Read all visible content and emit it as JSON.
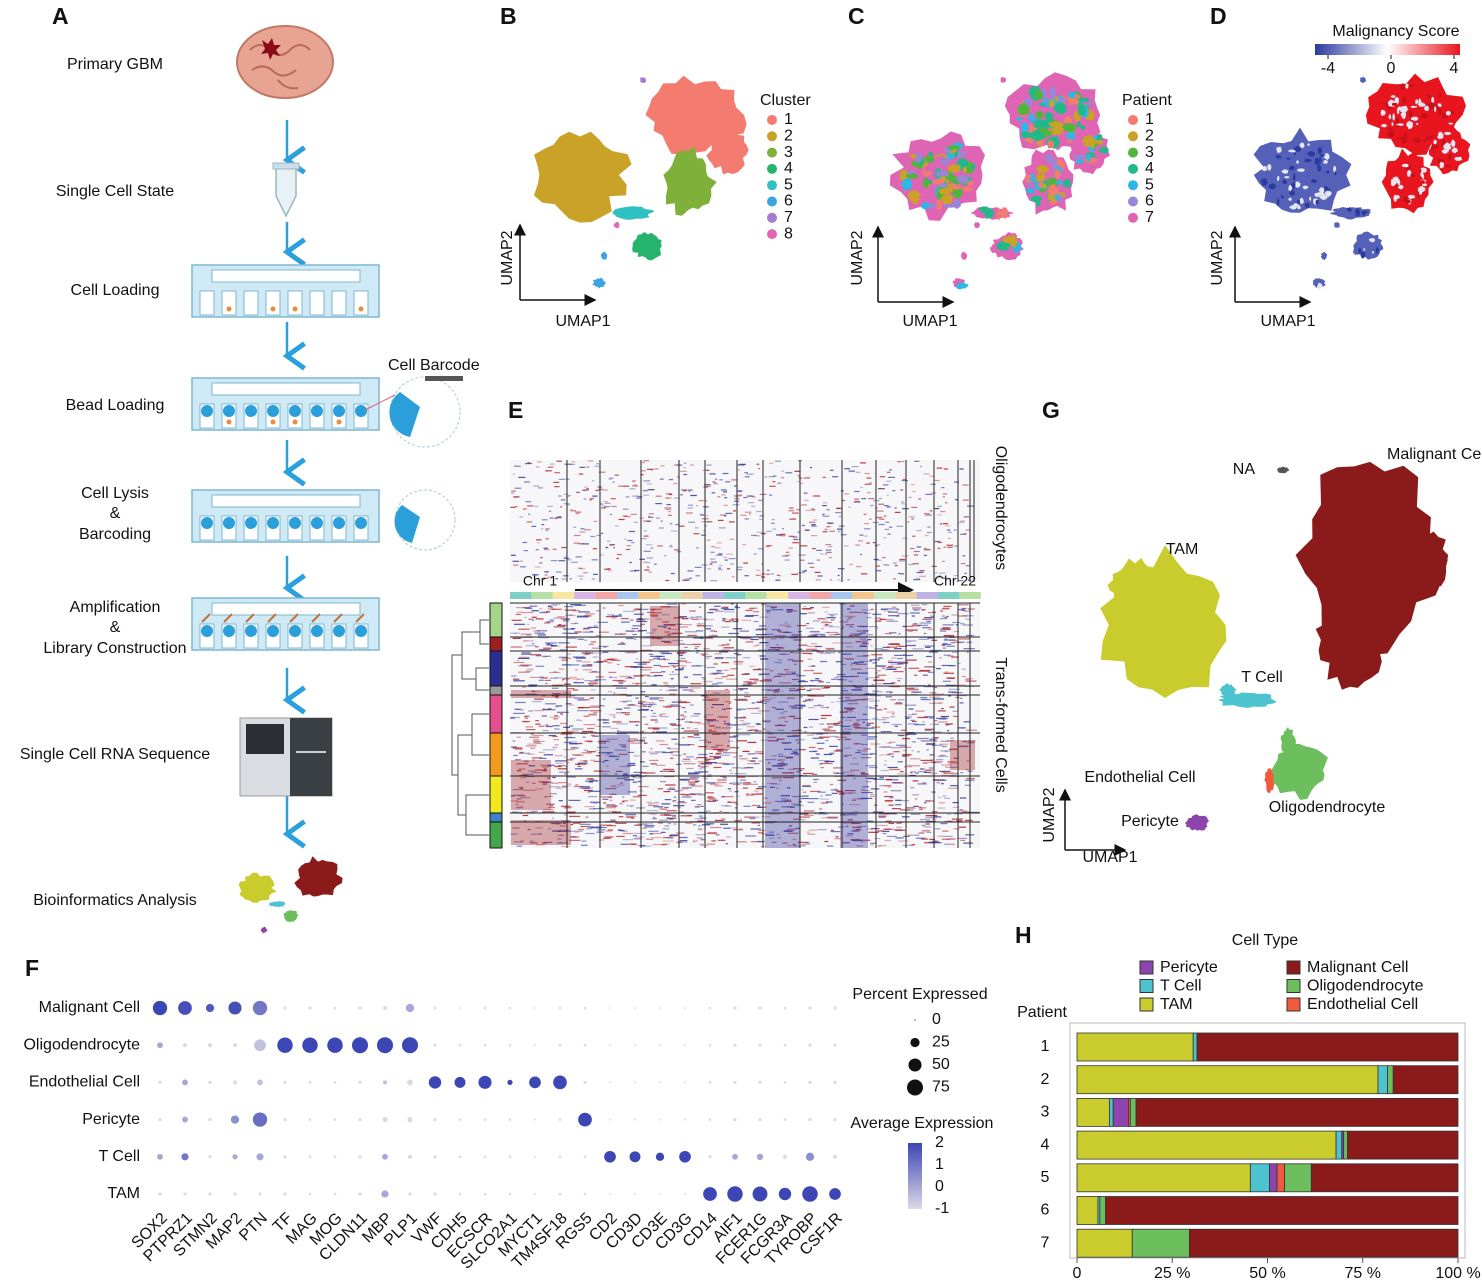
{
  "panel_a": {
    "letter": "A",
    "steps": [
      [
        "Primary GBM"
      ],
      [
        "Single Cell State"
      ],
      [
        "Cell Loading"
      ],
      [
        "Bead Loading"
      ],
      [
        "Cell Lysis",
        "&",
        "Barcoding"
      ],
      [
        "Amplification",
        "&",
        "Library Construction"
      ],
      [
        "Single Cell RNA Sequence"
      ],
      [
        "Bioinformatics Analysis"
      ]
    ],
    "cell_barcode": "Cell Barcode"
  },
  "panel_b": {
    "letter": "B",
    "legend_title": "Cluster",
    "x_label": "UMAP1",
    "y_label": "UMAP2",
    "clusters": [
      {
        "name": "1",
        "color": "#f37b6f"
      },
      {
        "name": "2",
        "color": "#c9a227"
      },
      {
        "name": "3",
        "color": "#7fb03a"
      },
      {
        "name": "4",
        "color": "#25b36d"
      },
      {
        "name": "5",
        "color": "#2fc0c4"
      },
      {
        "name": "6",
        "color": "#3aa3e0"
      },
      {
        "name": "7",
        "color": "#a57bd3"
      },
      {
        "name": "8",
        "color": "#e166b4"
      }
    ]
  },
  "panel_c": {
    "letter": "C",
    "legend_title": "Patient",
    "x_label": "UMAP1",
    "y_label": "UMAP2",
    "patients": [
      {
        "name": "1",
        "color": "#f37b6f"
      },
      {
        "name": "2",
        "color": "#c9a227"
      },
      {
        "name": "3",
        "color": "#4fb53d"
      },
      {
        "name": "4",
        "color": "#22b98a"
      },
      {
        "name": "5",
        "color": "#2fb6e6"
      },
      {
        "name": "6",
        "color": "#9a86d6"
      },
      {
        "name": "7",
        "color": "#e064b4"
      }
    ]
  },
  "panel_d": {
    "letter": "D",
    "colorbar_title": "Malignancy Score",
    "x_label": "UMAP1",
    "y_label": "UMAP2",
    "colorbar_ticks": [
      -4,
      0,
      4
    ],
    "colorbar_colors": [
      "#2b3a9e",
      "#ffffff",
      "#e8141e"
    ]
  },
  "panel_e": {
    "letter": "E",
    "top_label": "Oligodendrocytes",
    "bottom_label": "Trans-formed Cells",
    "chr_start": "Chr 1",
    "chr_end": "Chr 22"
  },
  "panel_g": {
    "letter": "G",
    "x_label": "UMAP1",
    "y_label": "UMAP2",
    "cell_types": [
      {
        "name": "NA",
        "color": "#555555"
      },
      {
        "name": "Malignant Cell",
        "color": "#8b1a1a"
      },
      {
        "name": "TAM",
        "color": "#c9cc2c"
      },
      {
        "name": "T Cell",
        "color": "#4ec3d0"
      },
      {
        "name": "Endothelial Cell",
        "color": "#f05a3c"
      },
      {
        "name": "Pericyte",
        "color": "#8e44ad"
      },
      {
        "name": "Oligodendrocyte",
        "color": "#6cbf5c"
      }
    ]
  },
  "chart_data": [
    {
      "type": "dot",
      "letter": "F",
      "categories": [
        "Malignant Cell",
        "Oligodendrocyte",
        "Endothelial Cell",
        "Pericyte",
        "T Cell",
        "TAM"
      ],
      "genes": [
        "SOX2",
        "PTPRZ1",
        "STMN2",
        "MAP2",
        "PTN",
        "TF",
        "MAG",
        "MOG",
        "CLDN11",
        "MBP",
        "PLP1",
        "VWF",
        "CDH5",
        "ECSCR",
        "SLCO2A1",
        "MYCT1",
        "TM4SF18",
        "RGS5",
        "CD2",
        "CD3D",
        "CD3E",
        "CD3G",
        "CD14",
        "AIF1",
        "FCER1G",
        "FCGR3A",
        "TYROBP",
        "CSF1R"
      ],
      "percent": [
        [
          60,
          55,
          20,
          50,
          60,
          3,
          3,
          2,
          3,
          5,
          20,
          2,
          1,
          2,
          2,
          1,
          2,
          2,
          1,
          1,
          1,
          1,
          2,
          3,
          3,
          2,
          3,
          3
        ],
        [
          10,
          5,
          5,
          5,
          40,
          70,
          70,
          70,
          75,
          75,
          75,
          3,
          2,
          2,
          2,
          1,
          2,
          2,
          1,
          1,
          1,
          1,
          2,
          3,
          3,
          2,
          3,
          3
        ],
        [
          3,
          10,
          3,
          5,
          10,
          3,
          2,
          2,
          3,
          5,
          10,
          45,
          35,
          50,
          8,
          40,
          55,
          3,
          1,
          1,
          1,
          1,
          2,
          3,
          3,
          2,
          3,
          3
        ],
        [
          3,
          10,
          3,
          20,
          60,
          3,
          2,
          2,
          3,
          8,
          8,
          3,
          2,
          2,
          2,
          1,
          2,
          55,
          1,
          1,
          1,
          1,
          2,
          3,
          3,
          2,
          3,
          3
        ],
        [
          10,
          15,
          3,
          8,
          15,
          3,
          2,
          2,
          3,
          10,
          5,
          3,
          2,
          2,
          2,
          1,
          2,
          2,
          40,
          35,
          20,
          40,
          3,
          10,
          12,
          5,
          20,
          5
        ],
        [
          3,
          3,
          3,
          3,
          3,
          3,
          2,
          2,
          3,
          15,
          3,
          3,
          2,
          2,
          2,
          1,
          2,
          2,
          1,
          1,
          1,
          1,
          55,
          70,
          65,
          45,
          70,
          40
        ]
      ],
      "expression": [
        [
          2,
          1.8,
          1.6,
          1.8,
          1,
          -1,
          -1,
          -1,
          -1,
          -1,
          0,
          -1,
          -1,
          -1,
          -1,
          -1,
          -1,
          -1,
          -1,
          -1,
          -1,
          -1,
          -1,
          -1,
          -1,
          -1,
          -1,
          -1
        ],
        [
          0,
          -1,
          -1,
          -1,
          -0.5,
          2,
          2,
          2,
          2,
          2,
          2,
          -1,
          -1,
          -1,
          -1,
          -1,
          -1,
          -1,
          -1,
          -1,
          -1,
          -1,
          -1,
          -1,
          -1,
          -1,
          -1,
          -1
        ],
        [
          -1,
          0,
          -1,
          -1,
          -0.5,
          -1,
          -1,
          -1,
          -1,
          -0.5,
          -1,
          2,
          2,
          2,
          2,
          2,
          2,
          -1,
          -1,
          -1,
          -1,
          -1,
          -1,
          -1,
          -1,
          -1,
          -1,
          -1
        ],
        [
          -1,
          0,
          -1,
          0.5,
          1.2,
          -1,
          -1,
          -1,
          -1,
          -1,
          -1,
          -1,
          -1,
          -1,
          -1,
          -1,
          -1,
          2,
          -1,
          -1,
          -1,
          -1,
          -1,
          -1,
          -1,
          -1,
          -1,
          -1
        ],
        [
          0,
          1,
          -1,
          0,
          0,
          -1,
          -1,
          -1,
          -1,
          0,
          -1,
          -1,
          -1,
          -1,
          -1,
          -1,
          -1,
          -1,
          2,
          2,
          2,
          2,
          -1,
          0,
          0,
          -1,
          0.5,
          -1
        ],
        [
          -1,
          -1,
          -1,
          -1,
          -1,
          -1,
          -1,
          -1,
          -1,
          0,
          -1,
          -1,
          -1,
          -1,
          -1,
          -1,
          -1,
          -1,
          -1,
          -1,
          -1,
          -1,
          2,
          2,
          2,
          2,
          2,
          2
        ]
      ],
      "size_title": "Percent Expressed",
      "size_ticks": [
        0,
        25,
        50,
        75
      ],
      "color_title": "Average Expression",
      "color_ticks": [
        2,
        1,
        0,
        -1
      ],
      "colors": [
        "#dcd8e8",
        "#3c46b4"
      ]
    },
    {
      "type": "bar",
      "letter": "H",
      "orientation": "horizontal",
      "stacked": true,
      "title": "Cell Type",
      "y_label": "Patient",
      "categories": [
        "1",
        "2",
        "3",
        "4",
        "5",
        "6",
        "7"
      ],
      "series": [
        {
          "name": "TAM",
          "color": "#c9cc2c",
          "values": [
            30.5,
            79,
            8.5,
            68,
            45.5,
            5.5,
            14.5
          ]
        },
        {
          "name": "T Cell",
          "color": "#4ec3d0",
          "values": [
            1,
            2.5,
            1,
            1.5,
            5,
            0.5,
            0
          ]
        },
        {
          "name": "Pericyte",
          "color": "#8e44ad",
          "values": [
            0,
            0,
            4,
            0.5,
            2,
            0,
            0
          ]
        },
        {
          "name": "Endothelial Cell",
          "color": "#f05a3c",
          "values": [
            0,
            0,
            0.5,
            0,
            2,
            0,
            0
          ]
        },
        {
          "name": "Oligodendrocyte",
          "color": "#6cbf5c",
          "values": [
            0,
            1.5,
            1.5,
            1,
            7,
            1.5,
            15
          ]
        },
        {
          "name": "Malignant Cell",
          "color": "#8b1a1a",
          "values": [
            68.5,
            17,
            84.5,
            29,
            38.5,
            92.5,
            70.5
          ]
        }
      ],
      "xlim": [
        0,
        100
      ],
      "xticks": [
        0,
        {
          "value": 25,
          "label": "25 %"
        },
        {
          "value": 50,
          "label": "50 %"
        },
        {
          "value": 75,
          "label": "75 %"
        },
        {
          "value": 100,
          "label": "100 %"
        }
      ]
    }
  ]
}
